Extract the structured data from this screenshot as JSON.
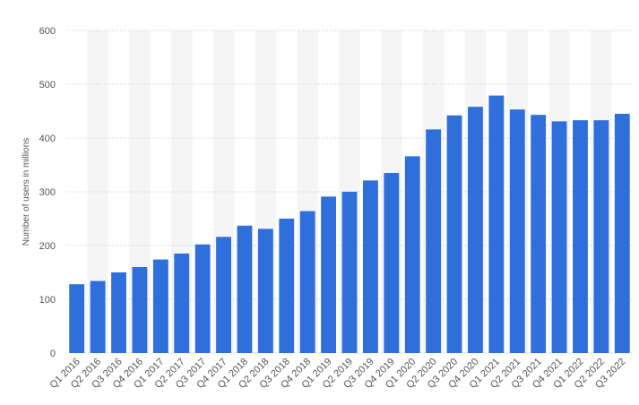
{
  "chart_data": {
    "type": "bar",
    "title": "",
    "xlabel": "",
    "ylabel": "Number of users in millions",
    "ylim": [
      0,
      600
    ],
    "yticks": [
      0,
      100,
      200,
      300,
      400,
      500,
      600
    ],
    "grid": true,
    "legend": "none",
    "bar_color": "#2f6fdc",
    "band_color": "#f5f5f5",
    "categories": [
      "Q1 2016",
      "Q2 2016",
      "Q3 2016",
      "Q4 2016",
      "Q1 2017",
      "Q2 2017",
      "Q3 2017",
      "Q4 2017",
      "Q1 2018",
      "Q2 2018",
      "Q3 2018",
      "Q4 2018",
      "Q1 2019",
      "Q2 2019",
      "Q3 2019",
      "Q4 2019",
      "Q1 2020",
      "Q2 2020",
      "Q3 2020",
      "Q4 2020",
      "Q1 2021",
      "Q2 2021",
      "Q3 2021",
      "Q4 2021",
      "Q1 2022",
      "Q2 2022",
      "Q3 2022"
    ],
    "values": [
      128,
      134,
      150,
      160,
      174,
      185,
      202,
      216,
      237,
      231,
      250,
      264,
      291,
      300,
      321,
      335,
      366,
      416,
      442,
      458,
      479,
      453,
      443,
      431,
      433,
      433,
      445
    ]
  }
}
